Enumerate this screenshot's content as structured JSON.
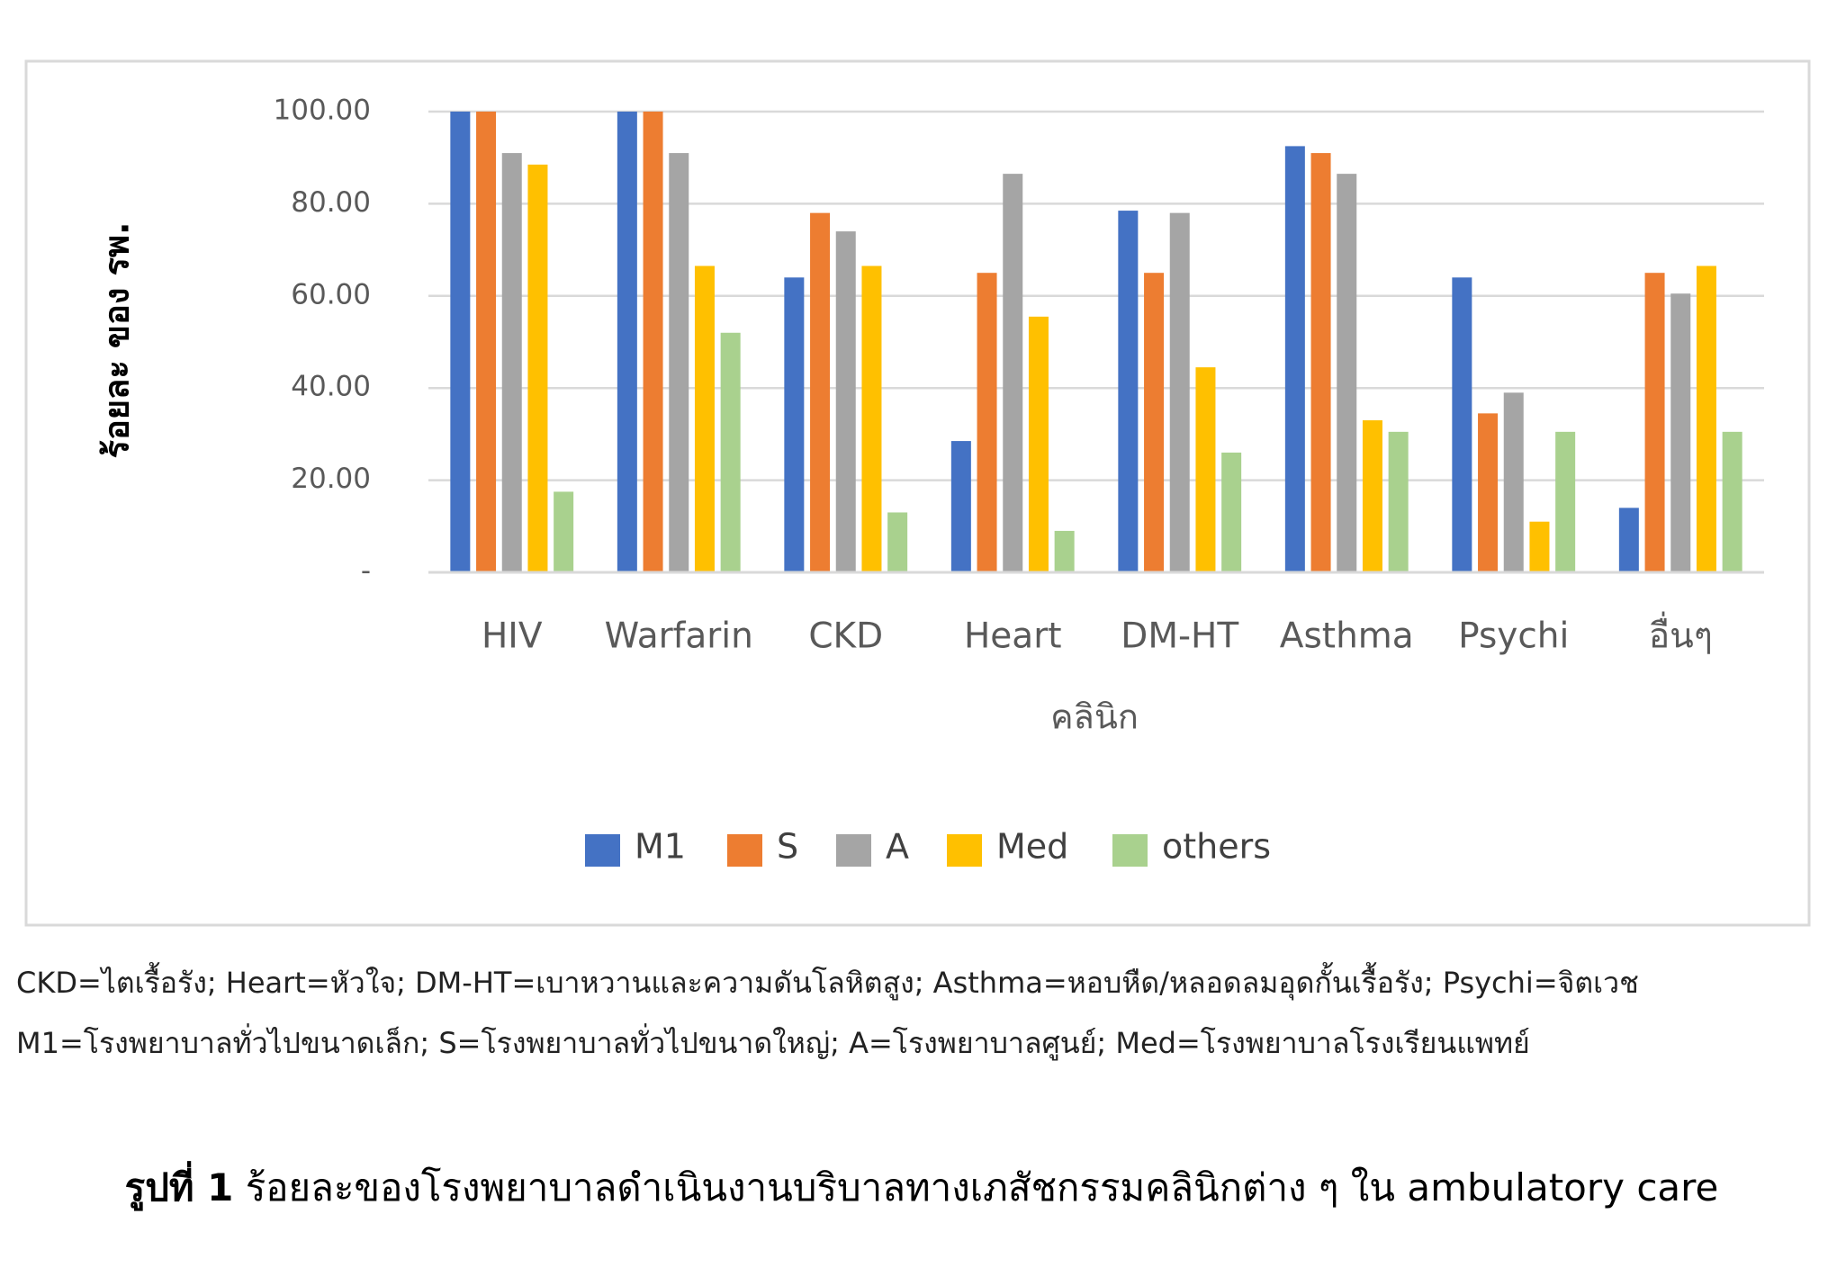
{
  "chart_data": {
    "type": "bar",
    "x_label": "คลินิก",
    "y_label": "ร้อยละ ของ รพ.",
    "categories": [
      "HIV",
      "Warfarin",
      "CKD",
      "Heart",
      "DM-HT",
      "Asthma",
      "Psychi",
      "อื่นๆ"
    ],
    "series": [
      {
        "name": "M1",
        "color": "#4472c4",
        "values": [
          100,
          100,
          64,
          28.5,
          78.5,
          92.5,
          64,
          14
        ]
      },
      {
        "name": "S",
        "color": "#ed7d31",
        "values": [
          100,
          100,
          78,
          65,
          65,
          91,
          34.5,
          65
        ]
      },
      {
        "name": "A",
        "color": "#a5a5a5",
        "values": [
          91,
          91,
          74,
          86.5,
          78,
          86.5,
          39,
          60.5
        ]
      },
      {
        "name": "Med",
        "color": "#ffc000",
        "values": [
          88.5,
          66.5,
          66.5,
          55.5,
          44.5,
          33,
          11,
          66.5
        ]
      },
      {
        "name": "others",
        "color": "#a9d18e",
        "values": [
          17.5,
          52,
          13,
          9,
          26,
          30.5,
          30.5,
          30.5
        ]
      }
    ],
    "ylim": [
      0,
      100
    ],
    "yticks": [
      {
        "value": 0,
        "label": "-"
      },
      {
        "value": 20,
        "label": "20.00"
      },
      {
        "value": 40,
        "label": "40.00"
      },
      {
        "value": 60,
        "label": "60.00"
      },
      {
        "value": 80,
        "label": "80.00"
      },
      {
        "value": 100,
        "label": "100.00"
      }
    ],
    "grid": true,
    "legend": "bottom"
  },
  "notes": [
    "CKD=ไตเรื้อรัง;  Heart=หัวใจ;  DM-HT=เบาหวานและความดันโลหิตสูง;  Asthma=หอบหืด/หลอดลมอุดกั้นเรื้อรัง;  Psychi=จิตเวช",
    "M1=โรงพยาบาลทั่วไปขนาดเล็ก;  S=โรงพยาบาลทั่วไปขนาดใหญ่;  A=โรงพยาบาลศูนย์;  Med=โรงพยาบาลโรงเรียนแพทย์"
  ],
  "caption": {
    "label": "รูปที่ 1",
    "text": " ร้อยละของโรงพยาบาลดำเนินงานบริบาลทางเภสัชกรรมคลินิกต่าง ๆ ใน ambulatory care"
  }
}
